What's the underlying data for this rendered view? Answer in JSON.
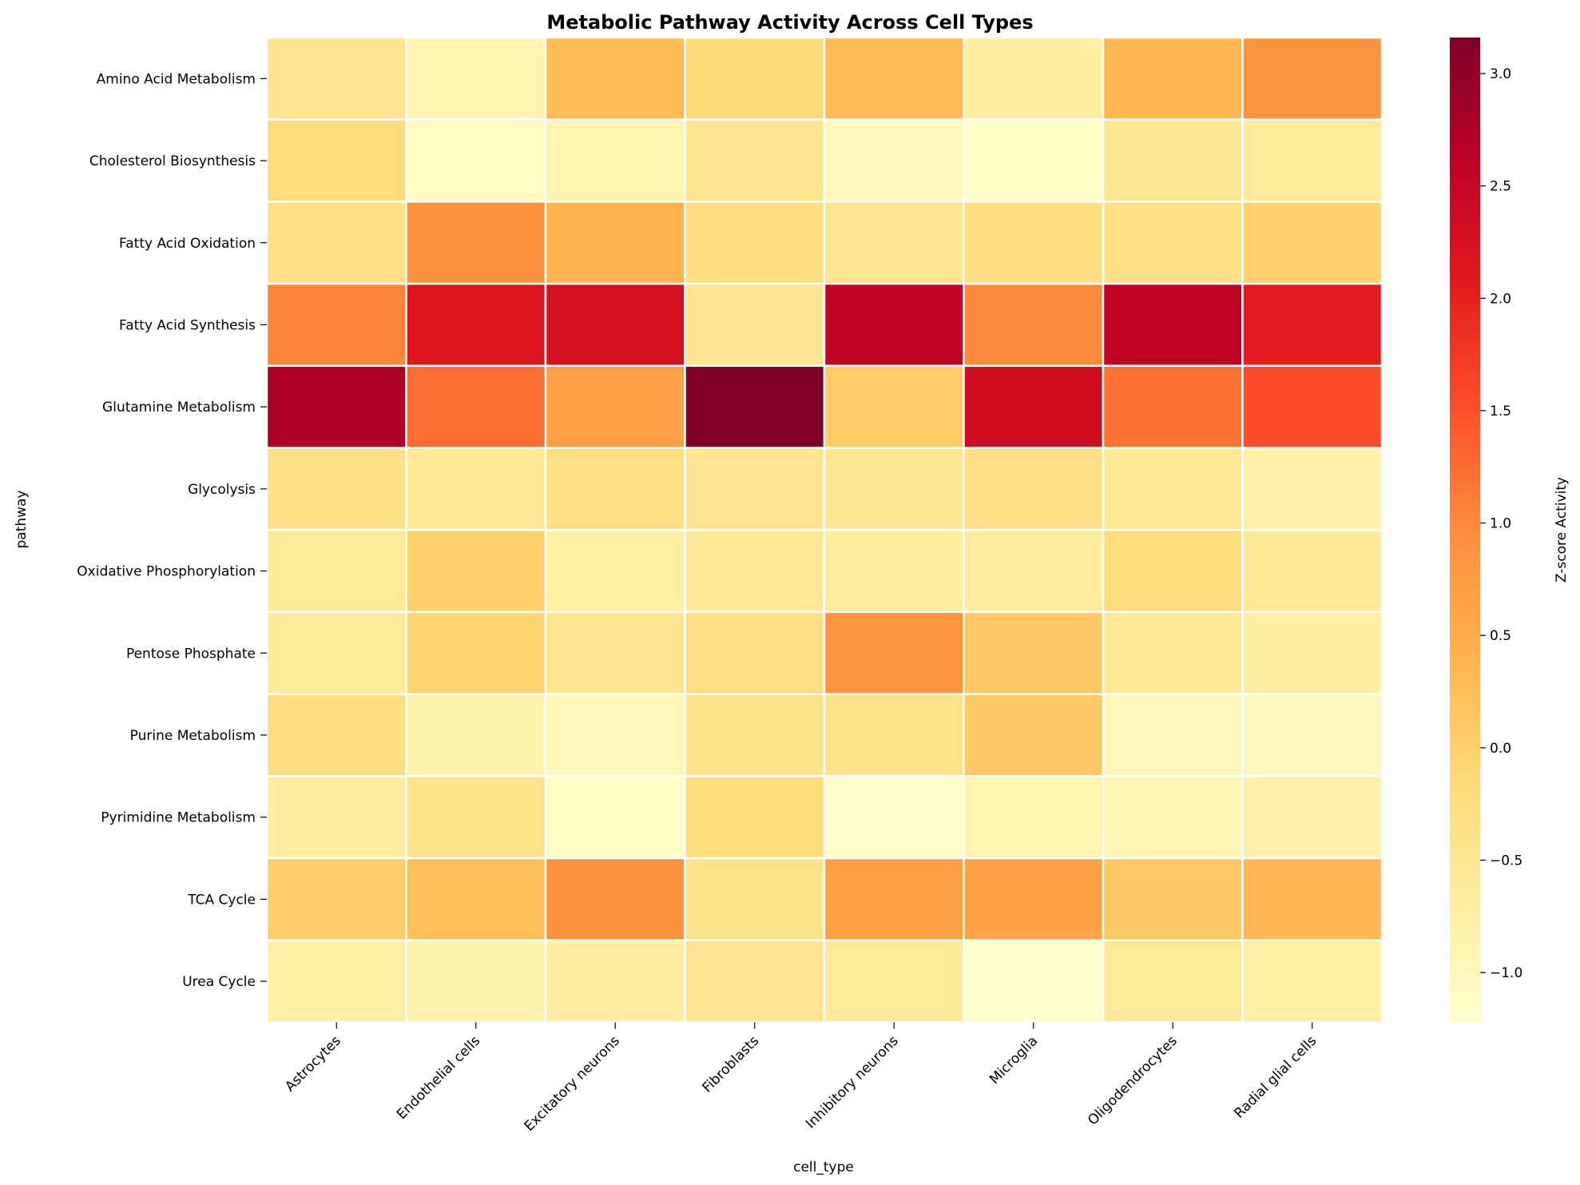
{
  "chart_data": {
    "type": "heatmap",
    "title": "Metabolic Pathway Activity Across Cell Types",
    "xlabel": "cell_type",
    "ylabel": "pathway",
    "colorbar_label": "Z-score Activity",
    "colormap": "YlOrRd",
    "vmin": -1.22,
    "vmax": 3.16,
    "colorbar_ticks": [
      "3.0",
      "2.5",
      "2.0",
      "1.5",
      "1.0",
      "0.5",
      "0.0",
      "−0.5",
      "−1.0"
    ],
    "colorbar_tick_values": [
      3.0,
      2.5,
      2.0,
      1.5,
      1.0,
      0.5,
      0.0,
      -0.5,
      -1.0
    ],
    "columns": [
      "Astrocytes",
      "Endothelial cells",
      "Excitatory neurons",
      "Fibroblasts",
      "Inhibitory neurons",
      "Microglia",
      "Oligodendrocytes",
      "Radial glial cells"
    ],
    "rows": [
      "Amino Acid Metabolism",
      "Cholesterol Biosynthesis",
      "Fatty Acid Oxidation",
      "Fatty Acid Synthesis",
      "Glutamine Metabolism",
      "Glycolysis",
      "Oxidative Phosphorylation",
      "Pentose Phosphate",
      "Purine Metabolism",
      "Pyrimidine Metabolism",
      "TCA Cycle",
      "Urea Cycle"
    ],
    "values": [
      [
        -0.45,
        -0.9,
        0.3,
        -0.15,
        0.3,
        -0.7,
        0.35,
        0.85
      ],
      [
        -0.2,
        -1.1,
        -0.9,
        -0.45,
        -1.05,
        -1.15,
        -0.5,
        -0.6
      ],
      [
        -0.35,
        0.9,
        0.4,
        -0.25,
        -0.45,
        -0.25,
        -0.3,
        0.0
      ],
      [
        1.05,
        2.15,
        2.25,
        -0.45,
        2.55,
        1.0,
        2.55,
        2.05
      ],
      [
        2.75,
        1.25,
        0.7,
        3.16,
        0.05,
        2.35,
        1.2,
        1.55
      ],
      [
        -0.35,
        -0.55,
        -0.3,
        -0.45,
        -0.5,
        -0.3,
        -0.55,
        -0.8
      ],
      [
        -0.6,
        0.0,
        -0.75,
        -0.55,
        -0.65,
        -0.65,
        -0.2,
        -0.55
      ],
      [
        -0.6,
        -0.05,
        -0.45,
        -0.3,
        0.85,
        0.1,
        -0.55,
        -0.7
      ],
      [
        -0.25,
        -0.85,
        -1.0,
        -0.4,
        -0.4,
        0.1,
        -1.0,
        -1.05
      ],
      [
        -0.7,
        -0.4,
        -1.15,
        -0.2,
        -1.2,
        -0.9,
        -0.95,
        -0.8
      ],
      [
        0.05,
        0.25,
        0.9,
        -0.4,
        0.7,
        0.65,
        0.1,
        0.35
      ],
      [
        -0.75,
        -0.85,
        -0.7,
        -0.45,
        -0.6,
        -1.22,
        -0.6,
        -0.75
      ]
    ]
  }
}
